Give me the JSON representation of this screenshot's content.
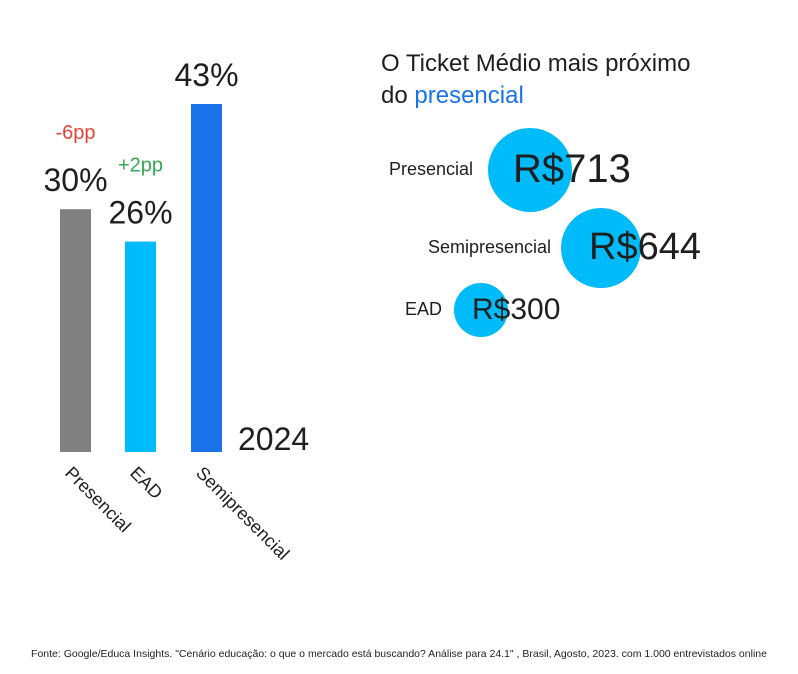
{
  "chart_data": [
    {
      "type": "bar",
      "categories": [
        "Presencial",
        "EAD",
        "Semipresencial"
      ],
      "values": [
        30,
        26,
        43
      ],
      "value_labels": [
        "30%",
        "26%",
        "43%"
      ],
      "deltas": [
        "-6pp",
        "+2pp",
        ""
      ],
      "delta_colors": [
        "#ea4335",
        "#34a853",
        ""
      ],
      "colors": [
        "#808080",
        "#00bbf9",
        "#1a73e8"
      ],
      "ylim": [
        0,
        43
      ],
      "year_label": "2024",
      "title": "",
      "xlabel": "",
      "ylabel": ""
    },
    {
      "type": "bubble",
      "title_prefix": "O Ticket Médio mais próximo do ",
      "title_line1": "O Ticket Médio mais próximo",
      "title_line2_prefix": "do ",
      "title_highlight": "presencial",
      "categories": [
        "Presencial",
        "Semipresencial",
        "EAD"
      ],
      "values": [
        713,
        644,
        300
      ],
      "value_labels": [
        "R$713",
        "R$644",
        "R$300"
      ],
      "bubble_color": "#00bbf9",
      "highlight_color": "#1a73e8"
    }
  ],
  "footer": {
    "source": "Fonte: Google/Educa Insights. \"Cenário educação: o que o mercado está buscando? Análise para 24.1\" , Brasil, Agosto, 2023. com 1.000 entrevistados online"
  }
}
